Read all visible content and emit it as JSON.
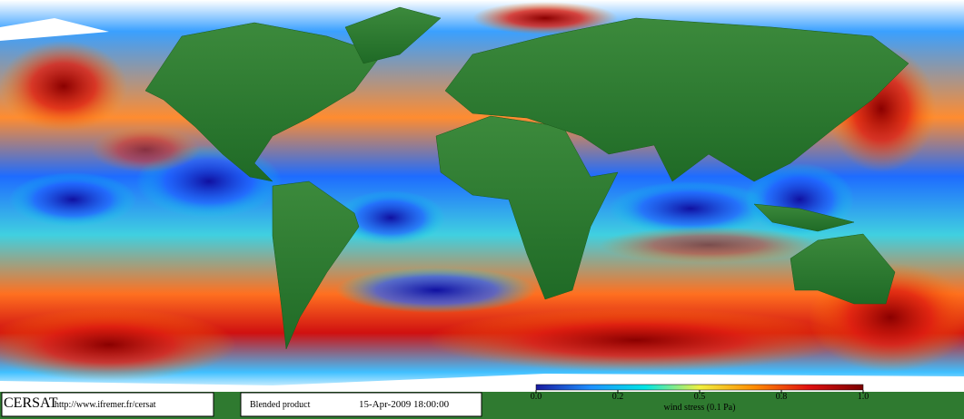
{
  "footer": {
    "logo": "CERSAT",
    "url": "http://www.ifremer.fr/cersat",
    "product": "Blended product",
    "datetime": "15-Apr-2009 18:00:00"
  },
  "colorbar": {
    "label": "wind stress (0.1 Pa)",
    "colors": [
      "#1a1aa0",
      "#1e90ff",
      "#00e5e5",
      "#f0f040",
      "#ff8c00",
      "#e01010",
      "#7a0000"
    ],
    "ticks": [
      {
        "value": 0,
        "label": "0.0"
      },
      0.2,
      0.5,
      0.8,
      {
        "value": 1,
        "label": "1.0"
      }
    ]
  }
}
